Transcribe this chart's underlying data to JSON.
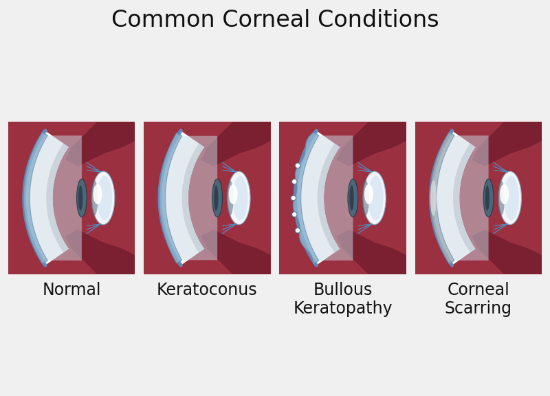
{
  "title": "Common Corneal Conditions",
  "title_fontsize": 24,
  "bg_color": "#f0f0f0",
  "panel_bg": "#ffffff",
  "labels": [
    "Normal",
    "Keratoconus",
    "Bullous\nKeratopathy",
    "Corneal\nScarring"
  ],
  "label_fontsize": 17,
  "col_red_dark": "#9b3040",
  "col_red_mid": "#b84055",
  "col_red_light": "#cc5060",
  "col_sclera": "#e8e8e8",
  "col_sclera2": "#ffffff",
  "col_cornea": "#8ab0cc",
  "col_cornea_inner": "#a0bcd8",
  "col_cornea_edge": "#6088a8",
  "col_iris_bg": "#7090a0",
  "col_iris_dark": "#3a5868",
  "col_lens_bg": "#d8e8f4",
  "col_lens_white": "#f0f6fa",
  "col_lens_dark": "#5a6a78",
  "col_lens_blue": "#7090a8",
  "col_zonule": "#5888bb",
  "col_limbus": "#6090c0"
}
